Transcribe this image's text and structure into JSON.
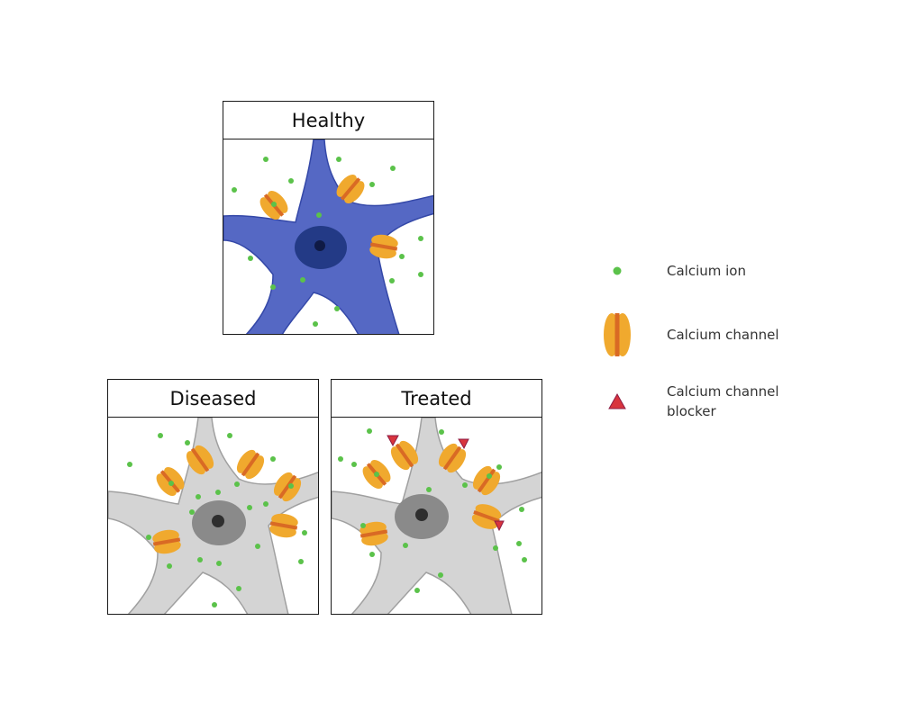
{
  "panels": {
    "healthy": {
      "title": "Healthy"
    },
    "diseased": {
      "title": "Diseased"
    },
    "treated": {
      "title": "Treated"
    }
  },
  "legend": {
    "ion_label": "Calcium ion",
    "channel_label": "Calcium channel",
    "blocker_label_line1": "Calcium channel",
    "blocker_label_line2": "blocker"
  },
  "colors": {
    "healthy_cell": "#5568c4",
    "healthy_nucleus": "#233a86",
    "healthy_nucleolus": "#0f1a45",
    "diseased_cell": "#d4d4d4",
    "diseased_nucleus": "#8a8a8a",
    "diseased_nucleolus": "#2e2e2e",
    "channel_body": "#f0a92e",
    "channel_stripe": "#d96a24",
    "calcium_ion": "#5bc24a",
    "blocker": "#d8343d"
  }
}
